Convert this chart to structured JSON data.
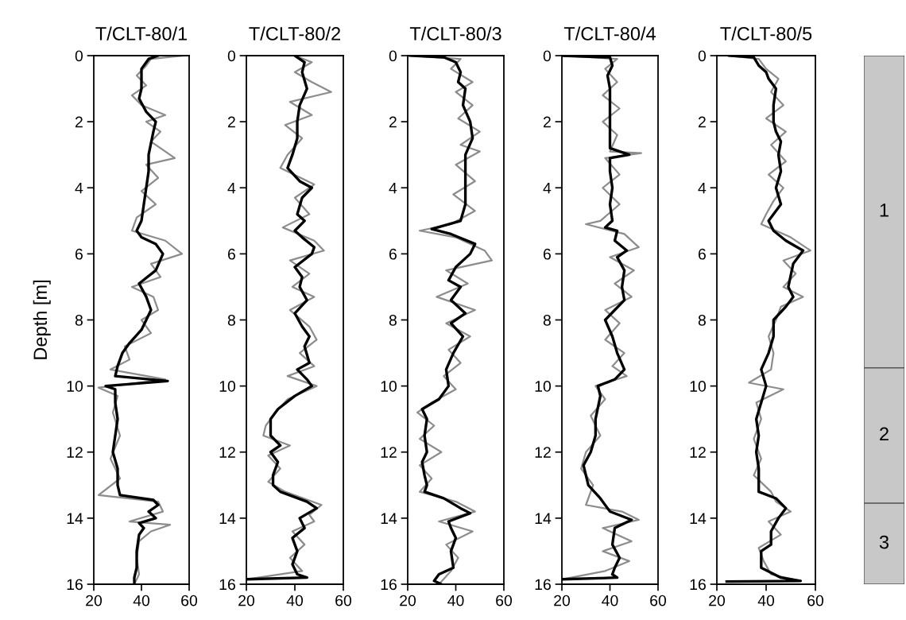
{
  "chart_data": [
    {
      "type": "line",
      "title": "T/CLT-80/1",
      "ylabel": "Depth [m]",
      "xlim": [
        20,
        60
      ],
      "xticks": [
        20,
        40,
        60
      ],
      "ylim": [
        16,
        0
      ],
      "yticks": [
        0,
        2,
        4,
        6,
        8,
        10,
        12,
        14,
        16
      ],
      "series": [
        {
          "color": "#8c8c8c",
          "x": [
            58,
            44,
            42,
            38,
            42,
            36,
            40,
            50,
            42,
            48,
            44,
            54,
            42,
            47,
            40,
            46,
            38,
            36,
            50,
            57,
            44,
            48,
            36,
            45,
            47,
            40,
            44,
            33,
            35,
            27,
            50,
            22,
            30,
            28,
            31,
            27,
            31,
            22,
            47,
            49,
            35,
            52,
            44,
            39,
            38,
            39,
            37
          ],
          "values": [
            0,
            0.1,
            0.3,
            0.6,
            0.9,
            1.2,
            1.5,
            1.8,
            2.0,
            2.3,
            2.6,
            3.1,
            3.3,
            3.7,
            4.1,
            4.5,
            4.9,
            5.3,
            5.6,
            6.0,
            6.3,
            6.7,
            7.0,
            7.3,
            7.7,
            8.0,
            8.4,
            8.8,
            9.2,
            9.5,
            9.8,
            10.05,
            10.3,
            10.8,
            11.5,
            12.2,
            12.8,
            13.3,
            13.5,
            13.8,
            14.1,
            14.2,
            14.4,
            14.7,
            15.2,
            15.7,
            16
          ]
        },
        {
          "color": "#000000",
          "x": [
            47,
            43,
            40,
            40,
            39,
            42,
            46,
            45,
            43,
            43,
            42,
            41,
            40,
            38,
            40,
            46,
            49,
            46,
            39,
            42,
            44,
            42,
            40,
            35,
            32,
            30,
            29,
            51,
            25,
            29,
            29,
            30,
            29,
            28,
            30,
            30,
            31,
            45,
            47,
            43,
            46,
            39,
            41,
            39,
            38,
            38,
            37,
            37
          ],
          "values": [
            0,
            0.1,
            0.4,
            1,
            1.3,
            1.7,
            2,
            2.3,
            3,
            3.5,
            4,
            4.5,
            5,
            5.3,
            5.5,
            5.7,
            6,
            6.5,
            6.9,
            7.3,
            7.7,
            8,
            8.3,
            8.7,
            9,
            9.4,
            9.7,
            9.85,
            10,
            10.1,
            10.5,
            11,
            11.5,
            12,
            12.5,
            13,
            13.3,
            13.45,
            13.6,
            13.8,
            14,
            14.15,
            14.3,
            14.5,
            15,
            15.5,
            15.8,
            16
          ]
        }
      ]
    },
    {
      "type": "line",
      "title": "T/CLT-80/2",
      "xlim": [
        20,
        60
      ],
      "xticks": [
        20,
        40,
        60
      ],
      "ylim": [
        16,
        0
      ],
      "yticks": [
        0,
        2,
        4,
        6,
        8,
        10,
        12,
        14,
        16
      ],
      "series": [
        {
          "color": "#8c8c8c",
          "x": [
            40,
            47,
            40,
            47,
            55,
            38,
            47,
            36,
            43,
            37,
            34,
            48,
            40,
            46,
            35,
            48,
            52,
            38,
            46,
            39,
            48,
            38,
            46,
            49,
            42,
            48,
            37,
            49,
            37,
            32,
            28,
            27,
            38,
            29,
            34,
            29,
            36,
            51,
            46,
            48,
            39,
            44,
            38,
            43,
            20
          ],
          "values": [
            0,
            0.2,
            0.5,
            0.8,
            1.1,
            1.4,
            1.8,
            2.1,
            2.5,
            3.0,
            3.4,
            3.9,
            4.3,
            4.8,
            5.2,
            5.6,
            5.9,
            6.2,
            6.6,
            7.0,
            7.3,
            7.7,
            8.2,
            8.6,
            9.0,
            9.4,
            9.7,
            10.0,
            10.4,
            10.8,
            11.2,
            11.5,
            11.8,
            12.1,
            12.5,
            12.9,
            13.2,
            13.6,
            13.9,
            14.1,
            14.4,
            14.8,
            15.2,
            15.6,
            15.85
          ]
        },
        {
          "color": "#000000",
          "x": [
            40,
            44,
            43,
            45,
            42,
            41,
            41,
            39,
            37,
            42,
            47,
            43,
            41,
            44,
            40,
            43,
            48,
            47,
            40,
            43,
            42,
            45,
            40,
            43,
            46,
            44,
            46,
            41,
            45,
            47,
            40,
            33,
            30,
            30,
            34,
            30,
            33,
            31,
            31,
            34,
            45,
            49,
            42,
            44,
            39,
            41,
            39,
            41,
            45,
            20
          ],
          "values": [
            0,
            0.2,
            0.5,
            1,
            1.5,
            2,
            2.5,
            3,
            3.4,
            3.8,
            4,
            4.3,
            4.8,
            5,
            5.3,
            5.5,
            5.8,
            6,
            6.4,
            6.7,
            7,
            7.4,
            7.8,
            8.2,
            8.5,
            8.8,
            9.3,
            9.5,
            9.8,
            10,
            10.3,
            10.7,
            11,
            11.5,
            11.8,
            12,
            12.3,
            12.7,
            13,
            13.2,
            13.5,
            13.7,
            14,
            14.3,
            14.6,
            15,
            15.4,
            15.7,
            15.8,
            15.85
          ]
        }
      ]
    },
    {
      "type": "line",
      "title": "T/CLT-80/3",
      "xlim": [
        20,
        60
      ],
      "xticks": [
        20,
        40,
        60
      ],
      "ylim": [
        16,
        0
      ],
      "yticks": [
        0,
        2,
        4,
        6,
        8,
        10,
        12,
        14,
        16
      ],
      "series": [
        {
          "color": "#8c8c8c",
          "x": [
            21,
            42,
            38,
            47,
            40,
            47,
            41,
            50,
            42,
            50,
            40,
            48,
            39,
            48,
            38,
            25,
            40,
            52,
            55,
            36,
            45,
            32,
            48,
            36,
            46,
            37,
            42,
            35,
            40,
            30,
            24,
            31,
            25,
            34,
            25,
            30,
            25,
            40,
            48,
            33,
            47,
            36,
            41,
            38,
            33
          ],
          "values": [
            0,
            0.1,
            0.4,
            0.8,
            1.1,
            1.5,
            1.9,
            2.3,
            2.7,
            2.9,
            3.3,
            3.8,
            4.2,
            4.7,
            5.1,
            5.3,
            5.5,
            5.9,
            6.2,
            6.5,
            6.9,
            7.3,
            7.7,
            8.1,
            8.5,
            8.9,
            9.3,
            9.7,
            10.1,
            10.5,
            10.8,
            11.2,
            11.6,
            12.0,
            12.4,
            12.8,
            13.2,
            13.5,
            13.8,
            14.1,
            14.4,
            14.8,
            15.2,
            15.6,
            16
          ]
        },
        {
          "color": "#000000",
          "x": [
            21,
            35,
            40,
            42,
            41,
            44,
            43,
            46,
            47,
            44,
            44,
            44,
            44,
            42,
            30,
            38,
            48,
            46,
            40,
            37,
            42,
            38,
            44,
            38,
            43,
            39,
            36,
            37,
            33,
            26,
            28,
            27,
            28,
            26,
            27,
            28,
            27,
            35,
            42,
            46,
            37,
            38,
            40,
            38,
            39,
            33,
            31,
            34
          ],
          "values": [
            0,
            0.05,
            0.2,
            0.5,
            0.8,
            1,
            1.5,
            2,
            2.5,
            3,
            3.5,
            4,
            4.5,
            5,
            5.25,
            5.4,
            5.7,
            6,
            6.4,
            6.8,
            7,
            7.4,
            7.8,
            8.1,
            8.5,
            9,
            9.5,
            10,
            10.4,
            10.7,
            11,
            11.5,
            12,
            12.3,
            12.7,
            13,
            13.2,
            13.4,
            13.7,
            13.85,
            14.1,
            14.3,
            14.6,
            15,
            15.5,
            15.7,
            15.9,
            16
          ]
        }
      ]
    },
    {
      "type": "line",
      "title": "T/CLT-80/4",
      "xlim": [
        20,
        60
      ],
      "xticks": [
        20,
        40,
        60
      ],
      "ylim": [
        16,
        0
      ],
      "yticks": [
        0,
        2,
        4,
        6,
        8,
        10,
        12,
        14,
        16
      ],
      "series": [
        {
          "color": "#8c8c8c",
          "x": [
            20,
            43,
            38,
            43,
            37,
            44,
            37,
            43,
            40,
            53,
            38,
            44,
            37,
            44,
            36,
            30,
            46,
            52,
            40,
            50,
            42,
            49,
            38,
            44,
            38,
            46,
            41,
            47,
            34,
            38,
            32,
            36,
            30,
            28,
            33,
            30,
            45,
            52,
            37,
            49,
            37,
            48,
            38,
            20
          ],
          "values": [
            0,
            0.1,
            0.4,
            0.8,
            1.2,
            1.6,
            2.0,
            2.4,
            2.9,
            2.95,
            3.1,
            3.6,
            4.0,
            4.5,
            5.0,
            5.1,
            5.4,
            5.8,
            6.1,
            6.5,
            6.9,
            7.3,
            7.7,
            8.1,
            8.6,
            9.0,
            9.4,
            9.7,
            10.0,
            10.4,
            10.9,
            11.5,
            12.0,
            12.5,
            13.0,
            13.6,
            13.8,
            14.05,
            14.3,
            14.7,
            15.0,
            15.3,
            15.6,
            15.85
          ]
        },
        {
          "color": "#000000",
          "x": [
            20,
            40,
            41,
            39,
            40,
            40,
            40,
            40,
            40,
            48,
            40,
            40,
            41,
            40,
            41,
            38,
            43,
            42,
            47,
            43,
            46,
            45,
            46,
            42,
            38,
            41,
            43,
            46,
            42,
            35,
            36,
            34,
            34,
            32,
            29,
            31,
            36,
            40,
            49,
            42,
            41,
            44,
            42,
            41,
            43,
            20
          ],
          "values": [
            0,
            0.05,
            0.3,
            0.6,
            1,
            1.5,
            2,
            2.4,
            2.8,
            3,
            3.1,
            3.5,
            4,
            4.5,
            5,
            5.2,
            5.3,
            5.6,
            5.9,
            6.1,
            6.5,
            7,
            7.4,
            7.7,
            8,
            8.5,
            9,
            9.5,
            9.8,
            10,
            10.3,
            11,
            11.5,
            12,
            12.4,
            13,
            13.4,
            13.8,
            14.05,
            14.3,
            14.8,
            15.2,
            15.5,
            15.7,
            15.8,
            15.85
          ]
        }
      ]
    },
    {
      "type": "line",
      "title": "T/CLT-80/5",
      "xlim": [
        20,
        60
      ],
      "xticks": [
        20,
        40,
        60
      ],
      "ylim": [
        16,
        0
      ],
      "yticks": [
        0,
        2,
        4,
        6,
        8,
        10,
        12,
        14,
        16
      ],
      "series": [
        {
          "color": "#8c8c8c",
          "x": [
            25,
            37,
            40,
            45,
            42,
            47,
            40,
            48,
            42,
            48,
            41,
            47,
            43,
            40,
            38,
            50,
            58,
            47,
            52,
            47,
            55,
            46,
            44,
            41,
            43,
            42,
            33,
            47,
            36,
            38,
            35,
            38,
            35,
            42,
            44,
            50,
            41,
            46,
            37,
            39,
            42,
            54,
            24
          ],
          "values": [
            0,
            0.1,
            0.4,
            0.7,
            1.1,
            1.5,
            1.9,
            2.3,
            2.7,
            3.2,
            3.6,
            4.0,
            4.4,
            4.8,
            5.1,
            5.5,
            5.9,
            6.2,
            6.6,
            7.0,
            7.3,
            7.6,
            8.0,
            8.5,
            9.0,
            9.5,
            9.9,
            10.1,
            10.5,
            11.0,
            11.6,
            12.2,
            12.7,
            13.2,
            13.5,
            13.8,
            14.1,
            14.5,
            14.9,
            15.3,
            15.7,
            15.9,
            15.92
          ]
        },
        {
          "color": "#000000",
          "x": [
            25,
            35,
            37,
            40,
            41,
            44,
            43,
            43,
            44,
            46,
            45,
            46,
            44,
            46,
            41,
            43,
            48,
            55,
            51,
            49,
            51,
            48,
            43,
            43,
            41,
            38,
            40,
            38,
            36,
            37,
            36,
            37,
            37,
            37,
            44,
            48,
            45,
            42,
            42,
            38,
            38,
            46,
            54,
            24
          ],
          "values": [
            0,
            0.05,
            0.3,
            0.5,
            0.7,
            1,
            1.5,
            2,
            2.3,
            2.6,
            3,
            3.5,
            4,
            4.5,
            5,
            5.3,
            5.6,
            5.9,
            6.3,
            7,
            7.3,
            7.6,
            8,
            8.5,
            9,
            9.5,
            10,
            10.5,
            11,
            11.5,
            12,
            12.5,
            13,
            13.2,
            13.4,
            13.7,
            14,
            14.4,
            14.8,
            15,
            15.5,
            15.8,
            15.9,
            15.92
          ]
        }
      ]
    },
    {
      "type": "bar",
      "stacked": true,
      "categories": [
        null
      ],
      "ylim": [
        16,
        0
      ],
      "yticks": [
        0,
        2,
        4,
        6,
        8,
        10,
        12,
        14,
        16
      ],
      "tick_labels": false,
      "series": [
        {
          "name": "1",
          "color": "#c8c8c8",
          "values": [
            9.45
          ]
        },
        {
          "name": "2",
          "color": "#c8c8c8",
          "values": [
            4.1
          ]
        },
        {
          "name": "3",
          "color": "#c8c8c8",
          "values": [
            2.45
          ]
        }
      ]
    }
  ]
}
